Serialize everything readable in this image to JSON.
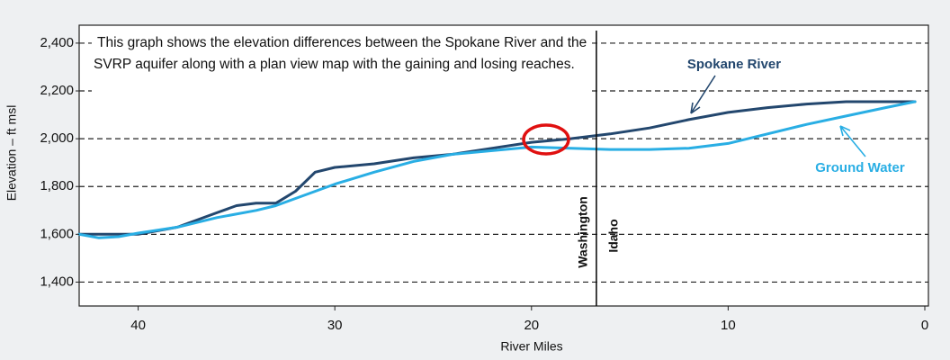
{
  "chart_data": {
    "type": "line",
    "annotation": "This graph shows the elevation differences between the Spokane River and the SVRP aquifer along with a plan view map with the gaining and losing reaches.",
    "xlabel": "River Miles",
    "ylabel": "Elevation – ft msl",
    "xlim": [
      43,
      0
    ],
    "xticks": [
      40,
      30,
      20,
      10,
      0
    ],
    "ylim": [
      1300,
      2475
    ],
    "yticks": [
      {
        "value": 1400,
        "label": "1,400"
      },
      {
        "value": 1600,
        "label": "1,600"
      },
      {
        "value": 1800,
        "label": "1,800"
      },
      {
        "value": 2000,
        "label": "2,000"
      },
      {
        "value": 2200,
        "label": "2,200"
      },
      {
        "value": 2400,
        "label": "2,400"
      }
    ],
    "grid": true,
    "state_line": 16.7,
    "state_labels": [
      "Washington",
      "Idaho"
    ],
    "series": [
      {
        "name": "Spokane River",
        "color": "#23476e",
        "x": [
          43,
          40,
          38,
          36,
          35,
          34,
          33,
          32,
          31,
          30,
          28,
          26,
          24,
          22,
          20,
          18,
          16,
          14,
          12,
          10,
          8,
          6,
          4,
          1,
          0.5
        ],
        "values": [
          1600,
          1600,
          1630,
          1690,
          1720,
          1730,
          1730,
          1780,
          1860,
          1880,
          1895,
          1920,
          1935,
          1960,
          1985,
          2000,
          2020,
          2045,
          2080,
          2110,
          2130,
          2145,
          2155,
          2155,
          2155
        ]
      },
      {
        "name": "Ground Water",
        "color": "#29aee4",
        "x": [
          43,
          42,
          41,
          40,
          38,
          36,
          34,
          33,
          32,
          30,
          28,
          26,
          24,
          22,
          20,
          18,
          16,
          14,
          12,
          10,
          8,
          6,
          4,
          2,
          0.5
        ],
        "values": [
          1600,
          1585,
          1590,
          1605,
          1630,
          1670,
          1700,
          1720,
          1750,
          1810,
          1860,
          1905,
          1935,
          1950,
          1965,
          1960,
          1955,
          1955,
          1960,
          1980,
          2020,
          2060,
          2095,
          2130,
          2155
        ]
      }
    ]
  }
}
